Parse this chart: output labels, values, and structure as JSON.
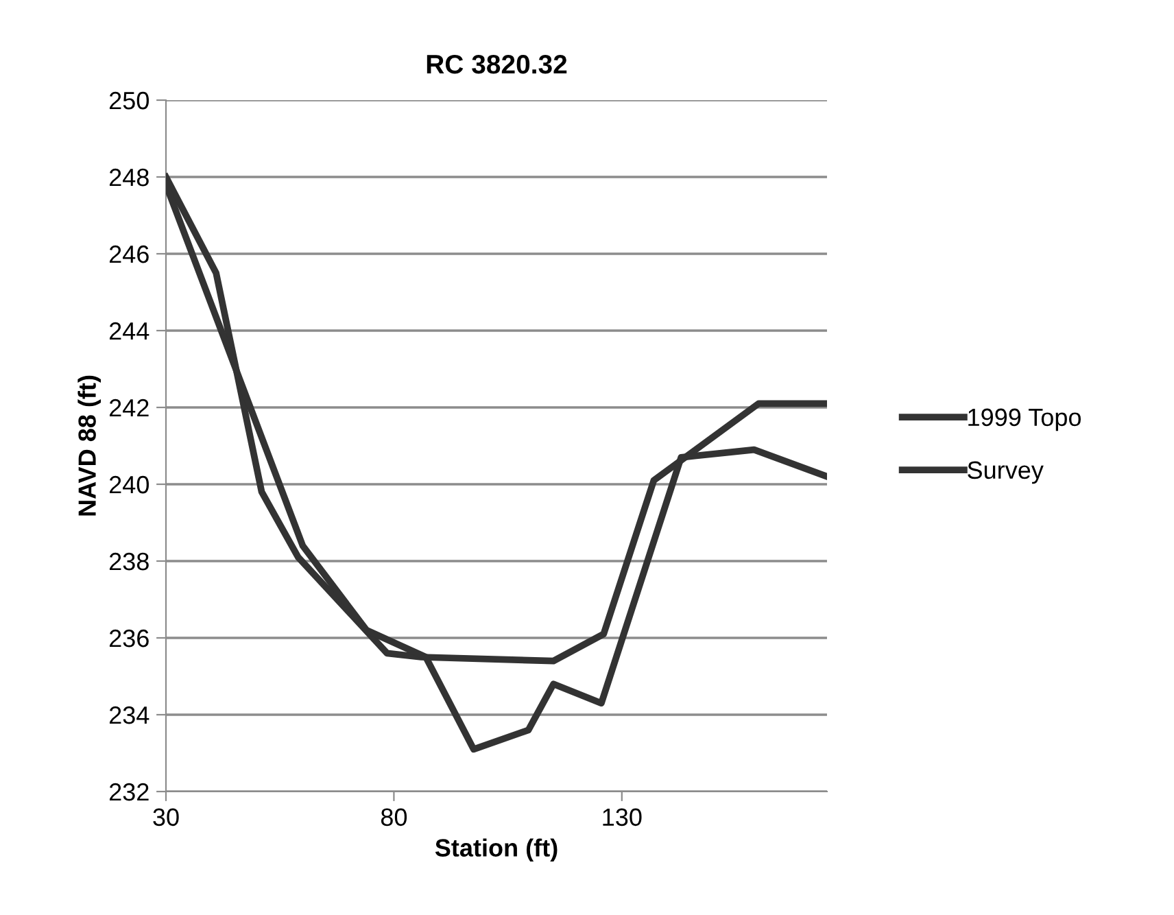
{
  "chart_data": {
    "type": "line",
    "title": "RC 3820.32",
    "xlabel": "Station (ft)",
    "ylabel": "NAVD 88 (ft)",
    "xlim": [
      30,
      175
    ],
    "xticks": [
      30,
      80,
      130
    ],
    "ylim": [
      232,
      250
    ],
    "yticks": [
      232,
      234,
      236,
      238,
      240,
      242,
      244,
      246,
      248,
      250
    ],
    "grid": "y",
    "legend": "right",
    "line_style": "solid",
    "marker": "none",
    "series": [
      {
        "name": "1999 Topo",
        "color": "#333333",
        "x": [
          30,
          41,
          51,
          59,
          78.5,
          86,
          115,
          126,
          137,
          160,
          175
        ],
        "values": [
          248.0,
          245.5,
          239.8,
          238.1,
          235.6,
          235.5,
          235.4,
          236.1,
          240.1,
          242.1,
          242.1
        ]
      },
      {
        "name": "Survey",
        "color": "#333333",
        "x": [
          30,
          60,
          74,
          87,
          97.5,
          109.5,
          115,
          125.5,
          143,
          159,
          175
        ],
        "values": [
          247.8,
          238.4,
          236.2,
          235.5,
          233.1,
          233.6,
          234.8,
          234.3,
          240.7,
          240.9,
          240.2
        ]
      }
    ]
  }
}
